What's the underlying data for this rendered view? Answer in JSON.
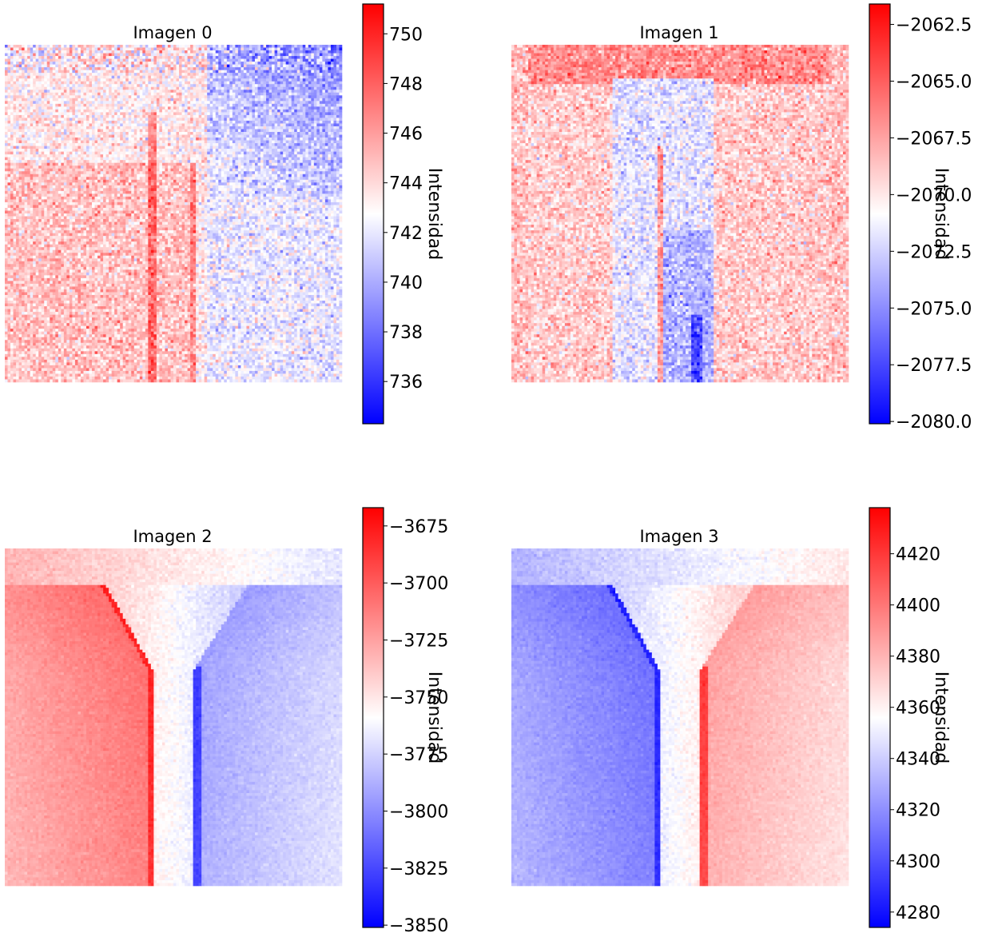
{
  "chart_data": [
    {
      "type": "heatmap",
      "title": "Imagen 0",
      "colorbar_label": "Intensidad",
      "colormap": "bwr",
      "clim": [
        734.3,
        751.2
      ],
      "ticks": [
        736,
        738,
        740,
        742,
        744,
        746,
        748,
        750
      ],
      "tick_labels": [
        "736",
        "738",
        "740",
        "742",
        "744",
        "746",
        "748",
        "750"
      ],
      "grid": false,
      "axes": "off"
    },
    {
      "type": "heatmap",
      "title": "Imagen 1",
      "colorbar_label": "Intensidad",
      "colormap": "bwr",
      "clim": [
        -2080.1,
        -2061.6
      ],
      "ticks": [
        -2080.0,
        -2077.5,
        -2075.0,
        -2072.5,
        -2070.0,
        -2067.5,
        -2065.0,
        -2062.5
      ],
      "tick_labels": [
        "−2080.0",
        "−2077.5",
        "−2075.0",
        "−2072.5",
        "−2070.0",
        "−2067.5",
        "−2065.0",
        "−2062.5"
      ],
      "grid": false,
      "axes": "off"
    },
    {
      "type": "heatmap",
      "title": "Imagen 2",
      "colorbar_label": "Intensidad",
      "colormap": "bwr",
      "clim": [
        -3851,
        -3667
      ],
      "ticks": [
        -3850,
        -3825,
        -3800,
        -3775,
        -3750,
        -3725,
        -3700,
        -3675
      ],
      "tick_labels": [
        "−3850",
        "−3825",
        "−3800",
        "−3775",
        "−3750",
        "−3725",
        "−3700",
        "−3675"
      ],
      "grid": false,
      "axes": "off"
    },
    {
      "type": "heatmap",
      "title": "Imagen 3",
      "colorbar_label": "Intensidad",
      "colormap": "bwr",
      "clim": [
        4274,
        4438
      ],
      "ticks": [
        4280,
        4300,
        4320,
        4340,
        4360,
        4380,
        4400,
        4420
      ],
      "tick_labels": [
        "4280",
        "4300",
        "4320",
        "4340",
        "4360",
        "4380",
        "4400",
        "4420"
      ],
      "grid": false,
      "axes": "off"
    }
  ],
  "colors": {
    "low": "#0000ff",
    "mid": "#ffffff",
    "high": "#ff0000"
  }
}
